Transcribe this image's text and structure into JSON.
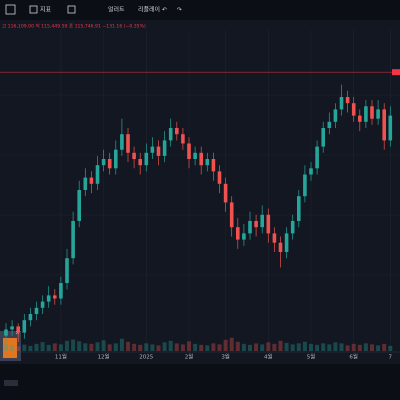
{
  "ui": {
    "toolbar": [
      "지표",
      "얼러트",
      "리플레이"
    ],
    "ohlc_text": "고 116,109.00 저 115,449.59 종 115,746.91 −131.16 (−0.35%)"
  },
  "chart_data": {
    "type": "candlestick",
    "categories": [
      null,
      null,
      null,
      null,
      null,
      null,
      null,
      null,
      null,
      "11월",
      null,
      null,
      null,
      null,
      null,
      null,
      "12월",
      null,
      null,
      null,
      null,
      null,
      null,
      "2025",
      null,
      null,
      null,
      null,
      null,
      null,
      "2월",
      null,
      null,
      null,
      null,
      null,
      "3월",
      null,
      null,
      null,
      null,
      null,
      null,
      "4월",
      null,
      null,
      null,
      null,
      null,
      null,
      "5월",
      null,
      null,
      null,
      null,
      null,
      null,
      "6월",
      null,
      null,
      null,
      null,
      null,
      "7"
    ],
    "open": [
      3,
      5,
      6,
      4,
      8,
      10,
      12,
      14,
      16,
      15,
      20,
      28,
      40,
      50,
      54,
      52,
      58,
      60,
      57,
      63,
      68,
      62,
      60,
      58,
      62,
      64,
      61,
      66,
      70,
      68,
      65,
      60,
      62,
      58,
      60,
      56,
      52,
      46,
      38,
      34,
      36,
      40,
      38,
      42,
      36,
      33,
      30,
      36,
      40,
      48,
      55,
      57,
      64,
      70,
      72,
      76,
      80,
      78,
      74,
      72,
      77,
      73,
      76,
      66
    ],
    "high": [
      7,
      8,
      7,
      10,
      12,
      14,
      16,
      19,
      18,
      22,
      31,
      43,
      53,
      57,
      56,
      61,
      63,
      62,
      66,
      73,
      70,
      64,
      62,
      65,
      67,
      66,
      69,
      73,
      72,
      70,
      67,
      64,
      64,
      62,
      62,
      58,
      54,
      48,
      41,
      39,
      43,
      42,
      45,
      44,
      38,
      35,
      38,
      42,
      50,
      58,
      59,
      66,
      72,
      75,
      78,
      84,
      82,
      80,
      76,
      79,
      79,
      79,
      78,
      77
    ],
    "low": [
      1,
      3,
      1,
      2,
      6,
      8,
      10,
      12,
      13,
      13,
      18,
      26,
      38,
      48,
      49,
      50,
      56,
      55,
      55,
      61,
      59,
      57,
      55,
      56,
      60,
      58,
      59,
      64,
      66,
      63,
      57,
      58,
      55,
      56,
      53,
      49,
      43,
      35,
      31,
      32,
      34,
      35,
      36,
      33,
      30,
      25,
      28,
      34,
      38,
      46,
      53,
      55,
      62,
      68,
      70,
      74,
      75,
      72,
      69,
      70,
      71,
      71,
      63,
      64
    ],
    "close": [
      5,
      6,
      4,
      8,
      10,
      12,
      14,
      16,
      15,
      20,
      28,
      40,
      50,
      54,
      52,
      58,
      60,
      57,
      63,
      68,
      62,
      60,
      58,
      62,
      64,
      61,
      66,
      70,
      68,
      65,
      60,
      62,
      58,
      60,
      56,
      52,
      46,
      38,
      34,
      36,
      40,
      38,
      42,
      36,
      33,
      30,
      36,
      40,
      48,
      55,
      57,
      64,
      70,
      72,
      76,
      80,
      78,
      74,
      72,
      77,
      73,
      76,
      66,
      74
    ],
    "volume": [
      30,
      22,
      18,
      25,
      20,
      28,
      35,
      24,
      30,
      26,
      40,
      45,
      38,
      30,
      28,
      34,
      42,
      26,
      30,
      48,
      36,
      28,
      24,
      30,
      26,
      22,
      34,
      40,
      30,
      26,
      38,
      28,
      24,
      22,
      30,
      26,
      44,
      52,
      36,
      28,
      24,
      30,
      26,
      34,
      28,
      40,
      32,
      26,
      30,
      36,
      28,
      24,
      30,
      26,
      34,
      30,
      22,
      28,
      24,
      30,
      26,
      22,
      28,
      20
    ],
    "ylim": [
      0,
      100
    ],
    "y2lim": [
      0,
      200
    ],
    "price_line": 88,
    "up_color": "#26a69a",
    "down_color": "#ef5350",
    "price_line_color": "#f23645",
    "grid": true
  }
}
